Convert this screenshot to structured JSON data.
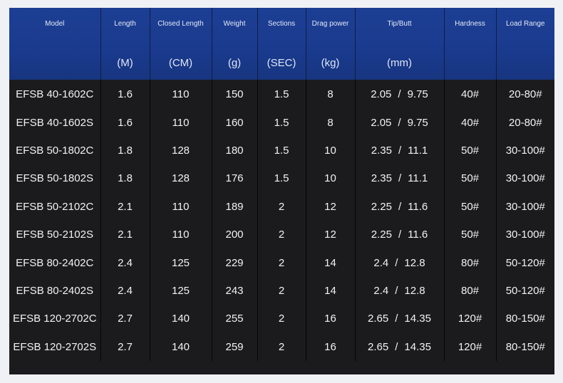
{
  "columns": [
    {
      "name": "Model",
      "unit": ""
    },
    {
      "name": "Length",
      "unit": "(M)"
    },
    {
      "name": "Closed Length",
      "unit": "(CM)"
    },
    {
      "name": "Weight",
      "unit": "(g)"
    },
    {
      "name": "Sections",
      "unit": "(SEC)"
    },
    {
      "name": "Drag power",
      "unit": "(kg)"
    },
    {
      "name": "Tip/Butt",
      "unit": "(mm)"
    },
    {
      "name": "Hardness",
      "unit": ""
    },
    {
      "name": "Load Range",
      "unit": ""
    }
  ],
  "rows": [
    {
      "model": "EFSB 40-1602C",
      "length": "1.6",
      "closed_length": "110",
      "weight": "150",
      "sections": "1.5",
      "drag": "8",
      "tip": "2.05",
      "butt": "9.75",
      "hardness": "40#",
      "load": "20-80#"
    },
    {
      "model": "EFSB 40-1602S",
      "length": "1.6",
      "closed_length": "110",
      "weight": "160",
      "sections": "1.5",
      "drag": "8",
      "tip": "2.05",
      "butt": "9.75",
      "hardness": "40#",
      "load": "20-80#"
    },
    {
      "model": "EFSB 50-1802C",
      "length": "1.8",
      "closed_length": "128",
      "weight": "180",
      "sections": "1.5",
      "drag": "10",
      "tip": "2.35",
      "butt": "11.1",
      "hardness": "50#",
      "load": "30-100#"
    },
    {
      "model": "EFSB 50-1802S",
      "length": "1.8",
      "closed_length": "128",
      "weight": "176",
      "sections": "1.5",
      "drag": "10",
      "tip": "2.35",
      "butt": "11.1",
      "hardness": "50#",
      "load": "30-100#"
    },
    {
      "model": "EFSB 50-2102C",
      "length": "2.1",
      "closed_length": "110",
      "weight": "189",
      "sections": "2",
      "drag": "12",
      "tip": "2.25",
      "butt": "11.6",
      "hardness": "50#",
      "load": "30-100#"
    },
    {
      "model": "EFSB 50-2102S",
      "length": "2.1",
      "closed_length": "110",
      "weight": "200",
      "sections": "2",
      "drag": "12",
      "tip": "2.25",
      "butt": "11.6",
      "hardness": "50#",
      "load": "30-100#"
    },
    {
      "model": "EFSB 80-2402C",
      "length": "2.4",
      "closed_length": "125",
      "weight": "229",
      "sections": "2",
      "drag": "14",
      "tip": "2.4",
      "butt": "12.8",
      "hardness": "80#",
      "load": "50-120#"
    },
    {
      "model": "EFSB 80-2402S",
      "length": "2.4",
      "closed_length": "125",
      "weight": "243",
      "sections": "2",
      "drag": "14",
      "tip": "2.4",
      "butt": "12.8",
      "hardness": "80#",
      "load": "50-120#"
    },
    {
      "model": "EFSB 120-2702C",
      "length": "2.7",
      "closed_length": "140",
      "weight": "255",
      "sections": "2",
      "drag": "16",
      "tip": "2.65",
      "butt": "14.35",
      "hardness": "120#",
      "load": "80-150#"
    },
    {
      "model": "EFSB 120-2702S",
      "length": "2.7",
      "closed_length": "140",
      "weight": "259",
      "sections": "2",
      "drag": "16",
      "tip": "2.65",
      "butt": "14.35",
      "hardness": "120#",
      "load": "80-150#"
    }
  ],
  "tip_butt_separator": "/",
  "colors": {
    "header_bg": "#1a3a8e",
    "body_bg": "#1b1b1d",
    "page_bg": "#f0f1f4",
    "text": "#f2f2f2"
  }
}
